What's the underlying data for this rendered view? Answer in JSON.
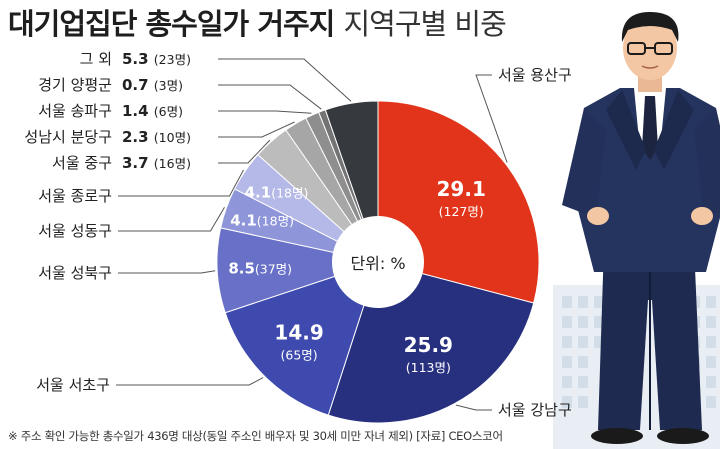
{
  "title": {
    "bold": "대기업집단 총수일가 거주지",
    "light": "지역구별 비중"
  },
  "center_label": "단위: %",
  "footnote": "※ 주소 확인 가능한 총수일가 436명 대상(동일 주소인 배우자 및 30세 미만 자녀 제외) [자료] CEO스코어",
  "chart_data": {
    "type": "pie",
    "donut": true,
    "unit": "%",
    "title": "대기업집단 총수일가 거주지 지역구별 비중",
    "slices": [
      {
        "label": "서울 용산구",
        "value": 29.1,
        "value_text": "29.1",
        "count": "(127명)",
        "color": "#e2341a"
      },
      {
        "label": "서울 강남구",
        "value": 25.9,
        "value_text": "25.9",
        "count": "(113명)",
        "color": "#27307f"
      },
      {
        "label": "서울 서초구",
        "value": 14.9,
        "value_text": "14.9",
        "count": "(65명)",
        "color": "#3e4aad"
      },
      {
        "label": "서울 성북구",
        "value": 8.5,
        "value_text": "8.5",
        "count": "(37명)",
        "color": "#6871c7"
      },
      {
        "label": "서울 성동구",
        "value": 4.1,
        "value_text": "4.1",
        "count": "(18명)",
        "color": "#8e95d9"
      },
      {
        "label": "서울 종로구",
        "value": 4.1,
        "value_text": "4.1",
        "count": "(18명)",
        "color": "#b4b9e8"
      },
      {
        "label": "서울 중구",
        "value": 3.7,
        "value_text": "3.7",
        "count": "(16명)",
        "color": "#bcbcbc"
      },
      {
        "label": "성남시 분당구",
        "value": 2.3,
        "value_text": "2.3",
        "count": "(10명)",
        "color": "#a6a6a6"
      },
      {
        "label": "서울 송파구",
        "value": 1.4,
        "value_text": "1.4",
        "count": "(6명)",
        "color": "#8e8e8e"
      },
      {
        "label": "경기 양평군",
        "value": 0.7,
        "value_text": "0.7",
        "count": "(3명)",
        "color": "#737373"
      },
      {
        "label": "그 외",
        "value": 5.3,
        "value_text": "5.3",
        "count": "(23명)",
        "color": "#363a3f"
      }
    ]
  }
}
